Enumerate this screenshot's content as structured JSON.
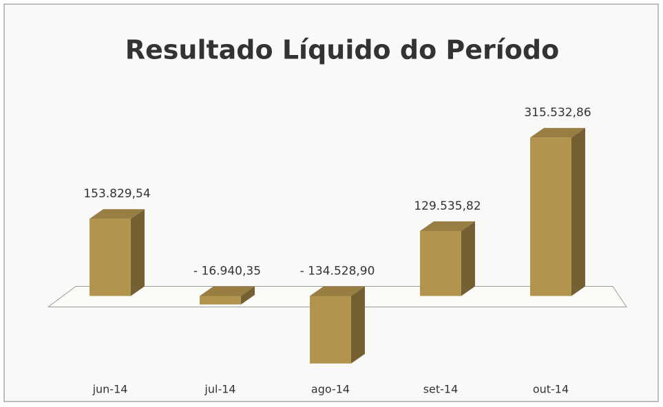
{
  "chart_data": {
    "type": "bar3d",
    "title": "Resultado Líquido do Período",
    "categories": [
      "jun-14",
      "jul-14",
      "ago-14",
      "set-14",
      "out-14"
    ],
    "values": [
      153829.54,
      -16940.35,
      -134528.9,
      129535.82,
      315532.86
    ],
    "value_labels": [
      "153.829,54",
      "- 16.940,35",
      "- 134.528,90",
      "129.535,82",
      "315.532,86"
    ],
    "color": "#b3944f",
    "ylim": [
      -150000,
      350000
    ]
  }
}
